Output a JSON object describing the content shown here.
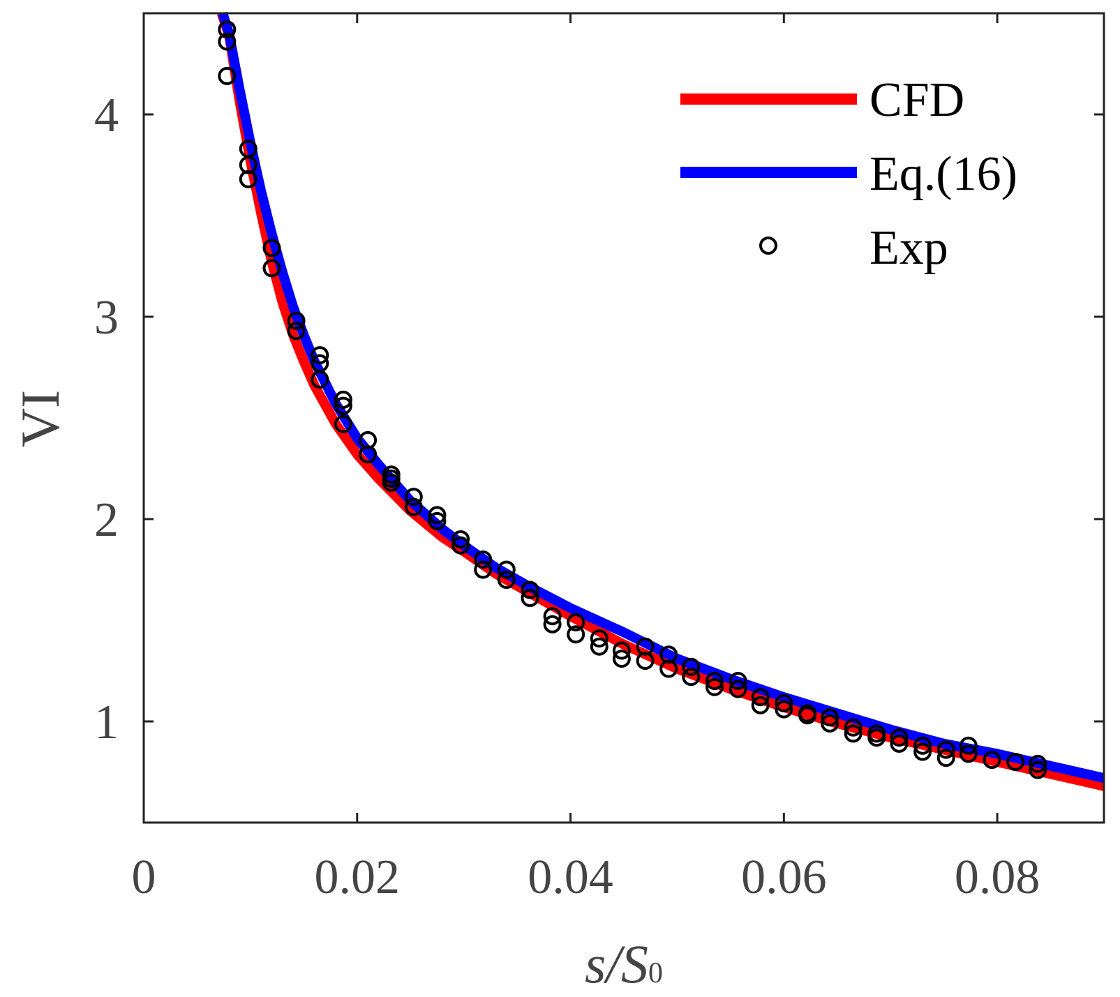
{
  "chart_data": {
    "type": "line",
    "title": "",
    "xlabel": "s/S0",
    "xlabel_parts": {
      "main": "s/S",
      "sub": "0"
    },
    "ylabel": "VI",
    "xlim": [
      0,
      0.09
    ],
    "ylim": [
      0.5,
      4.5
    ],
    "xticks": [
      0,
      0.02,
      0.04,
      0.06,
      0.08
    ],
    "xtick_labels": [
      "0",
      "0.02",
      "0.04",
      "0.06",
      "0.08"
    ],
    "yticks": [
      1,
      2,
      3,
      4
    ],
    "ytick_labels": [
      "1",
      "2",
      "3",
      "4"
    ],
    "grid": false,
    "legend_position": "top-right",
    "series": [
      {
        "name": "CFD",
        "kind": "line",
        "color": "#ff0000",
        "x": [
          0.0073,
          0.008,
          0.009,
          0.01,
          0.011,
          0.012,
          0.013,
          0.014,
          0.015,
          0.016,
          0.018,
          0.02,
          0.022,
          0.025,
          0.028,
          0.03,
          0.033,
          0.036,
          0.04,
          0.045,
          0.05,
          0.055,
          0.06,
          0.065,
          0.07,
          0.075,
          0.08,
          0.085,
          0.09
        ],
        "y": [
          4.5,
          4.39,
          4.06,
          3.77,
          3.51,
          3.27,
          3.07,
          2.91,
          2.78,
          2.66,
          2.47,
          2.32,
          2.2,
          2.04,
          1.91,
          1.84,
          1.73,
          1.64,
          1.52,
          1.38,
          1.26,
          1.16,
          1.07,
          0.99,
          0.92,
          0.86,
          0.8,
          0.74,
          0.68
        ]
      },
      {
        "name": "Eq.(16)",
        "kind": "line",
        "color": "#0000ff",
        "x": [
          0.0074,
          0.008,
          0.009,
          0.01,
          0.011,
          0.012,
          0.013,
          0.014,
          0.015,
          0.016,
          0.018,
          0.02,
          0.022,
          0.025,
          0.028,
          0.03,
          0.033,
          0.036,
          0.04,
          0.045,
          0.05,
          0.055,
          0.06,
          0.065,
          0.07,
          0.075,
          0.08,
          0.085,
          0.09
        ],
        "y": [
          4.5,
          4.4,
          4.12,
          3.86,
          3.62,
          3.41,
          3.22,
          3.05,
          2.91,
          2.78,
          2.57,
          2.4,
          2.27,
          2.09,
          1.95,
          1.87,
          1.76,
          1.67,
          1.56,
          1.44,
          1.31,
          1.21,
          1.12,
          1.04,
          0.96,
          0.89,
          0.84,
          0.78,
          0.72
        ]
      },
      {
        "name": "Exp",
        "kind": "scatter",
        "color": "#000000",
        "x": [
          0.0078,
          0.0078,
          0.0078,
          0.0098,
          0.0098,
          0.0098,
          0.012,
          0.012,
          0.0143,
          0.0143,
          0.0165,
          0.0165,
          0.0165,
          0.0187,
          0.0187,
          0.0187,
          0.021,
          0.021,
          0.0232,
          0.0232,
          0.0232,
          0.0253,
          0.0253,
          0.0275,
          0.0275,
          0.0297,
          0.0297,
          0.0318,
          0.0318,
          0.034,
          0.034,
          0.0362,
          0.0362,
          0.0383,
          0.0383,
          0.0405,
          0.0405,
          0.0427,
          0.0427,
          0.0448,
          0.0448,
          0.047,
          0.047,
          0.0492,
          0.0492,
          0.0513,
          0.0513,
          0.0535,
          0.0535,
          0.0557,
          0.0557,
          0.0578,
          0.0578,
          0.06,
          0.06,
          0.0622,
          0.0622,
          0.0643,
          0.0643,
          0.0665,
          0.0665,
          0.0687,
          0.0687,
          0.0708,
          0.0708,
          0.073,
          0.073,
          0.0752,
          0.0752,
          0.0773,
          0.0773,
          0.0795,
          0.0817,
          0.0838,
          0.0838
        ],
        "y": [
          4.42,
          4.36,
          4.19,
          3.83,
          3.75,
          3.68,
          3.34,
          3.24,
          2.98,
          2.93,
          2.81,
          2.77,
          2.69,
          2.59,
          2.56,
          2.47,
          2.39,
          2.32,
          2.22,
          2.2,
          2.18,
          2.11,
          2.06,
          2.02,
          1.99,
          1.9,
          1.87,
          1.8,
          1.75,
          1.75,
          1.7,
          1.65,
          1.61,
          1.52,
          1.48,
          1.49,
          1.43,
          1.41,
          1.37,
          1.35,
          1.31,
          1.37,
          1.3,
          1.33,
          1.26,
          1.27,
          1.22,
          1.2,
          1.17,
          1.2,
          1.16,
          1.12,
          1.08,
          1.09,
          1.06,
          1.04,
          1.03,
          1.02,
          0.99,
          0.97,
          0.94,
          0.94,
          0.92,
          0.92,
          0.89,
          0.88,
          0.85,
          0.86,
          0.82,
          0.88,
          0.84,
          0.81,
          0.8,
          0.79,
          0.76
        ]
      }
    ]
  }
}
